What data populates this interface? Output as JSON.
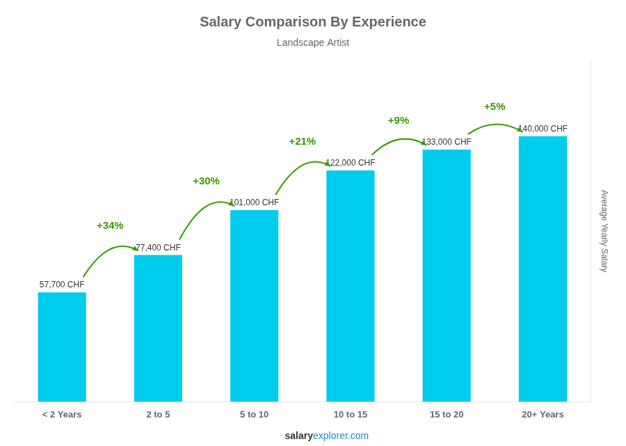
{
  "chart_data": {
    "type": "bar",
    "title": "Salary Comparison By Experience",
    "subtitle": "Landscape Artist",
    "categories": [
      "< 2 Years",
      "2 to 5",
      "5 to 10",
      "10 to 15",
      "15 to 20",
      "20+ Years"
    ],
    "values": [
      57700,
      77400,
      101000,
      122000,
      133000,
      140000
    ],
    "value_labels": [
      "57,700 CHF",
      "77,400 CHF",
      "101,000 CHF",
      "122,000 CHF",
      "133,000 CHF",
      "140,000 CHF"
    ],
    "data_labels": true,
    "annotations": [
      "+34%",
      "+30%",
      "+21%",
      "+9%",
      "+5%"
    ],
    "y_label": "Average Yearly Salary",
    "footer": [
      "salary",
      "explorer.com"
    ],
    "color": "#00ccee",
    "ylim": [
      0,
      180000
    ],
    "grid": false,
    "tick_labels": "x"
  }
}
